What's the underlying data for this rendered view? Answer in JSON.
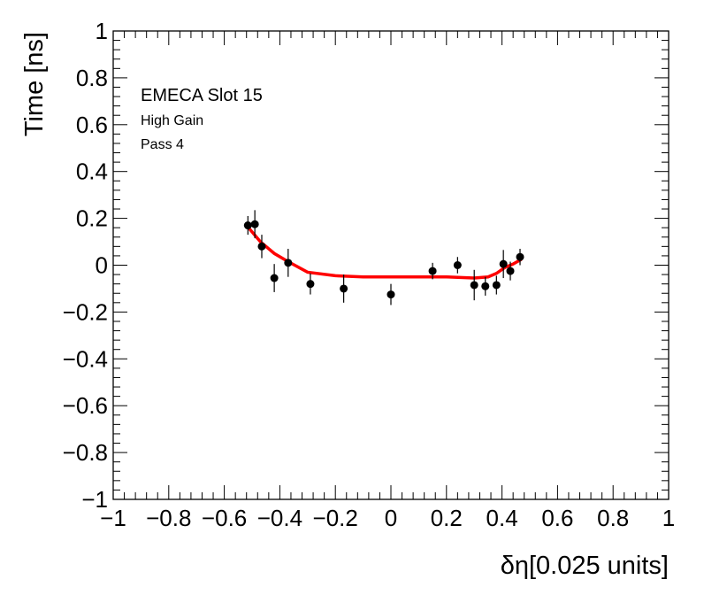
{
  "chart_data": {
    "type": "scatter",
    "xlabel": "δη[0.025 units]",
    "ylabel": "Time [ns]",
    "xlim": [
      -1,
      1
    ],
    "ylim": [
      -1,
      1
    ],
    "x_tick_labels": [
      "−1",
      "−0.8",
      "−0.6",
      "−0.4",
      "−0.2",
      "0",
      "0.2",
      "0.4",
      "0.6",
      "0.8",
      "1"
    ],
    "y_tick_labels": [
      "−1",
      "−0.8",
      "−0.6",
      "−0.4",
      "−0.2",
      "0",
      "0.2",
      "0.4",
      "0.6",
      "0.8",
      "1"
    ],
    "annotations": [
      "EMECA Slot 15",
      "High Gain",
      "Pass 4"
    ],
    "grid": false,
    "points": [
      {
        "x": -0.515,
        "y": 0.17,
        "err": 0.04
      },
      {
        "x": -0.49,
        "y": 0.175,
        "err": 0.06
      },
      {
        "x": -0.465,
        "y": 0.08,
        "err": 0.05
      },
      {
        "x": -0.42,
        "y": -0.055,
        "err": 0.06
      },
      {
        "x": -0.37,
        "y": 0.01,
        "err": 0.06
      },
      {
        "x": -0.29,
        "y": -0.08,
        "err": 0.045
      },
      {
        "x": -0.17,
        "y": -0.1,
        "err": 0.06
      },
      {
        "x": 0.0,
        "y": -0.125,
        "err": 0.045
      },
      {
        "x": 0.15,
        "y": -0.025,
        "err": 0.035
      },
      {
        "x": 0.24,
        "y": 0.0,
        "err": 0.035
      },
      {
        "x": 0.3,
        "y": -0.085,
        "err": 0.065
      },
      {
        "x": 0.34,
        "y": -0.09,
        "err": 0.04
      },
      {
        "x": 0.38,
        "y": -0.085,
        "err": 0.04
      },
      {
        "x": 0.405,
        "y": 0.005,
        "err": 0.06
      },
      {
        "x": 0.43,
        "y": -0.025,
        "err": 0.04
      },
      {
        "x": 0.465,
        "y": 0.035,
        "err": 0.035
      }
    ],
    "fit": {
      "color": "#ff0000",
      "x": [
        -0.52,
        -0.47,
        -0.42,
        -0.37,
        -0.3,
        -0.2,
        -0.1,
        0.0,
        0.1,
        0.2,
        0.3,
        0.35,
        0.38,
        0.41,
        0.44,
        0.47
      ],
      "y": [
        0.17,
        0.1,
        0.05,
        0.015,
        -0.03,
        -0.045,
        -0.05,
        -0.05,
        -0.05,
        -0.05,
        -0.055,
        -0.05,
        -0.035,
        -0.01,
        0.005,
        0.025
      ]
    },
    "marker_color": "#000000"
  }
}
